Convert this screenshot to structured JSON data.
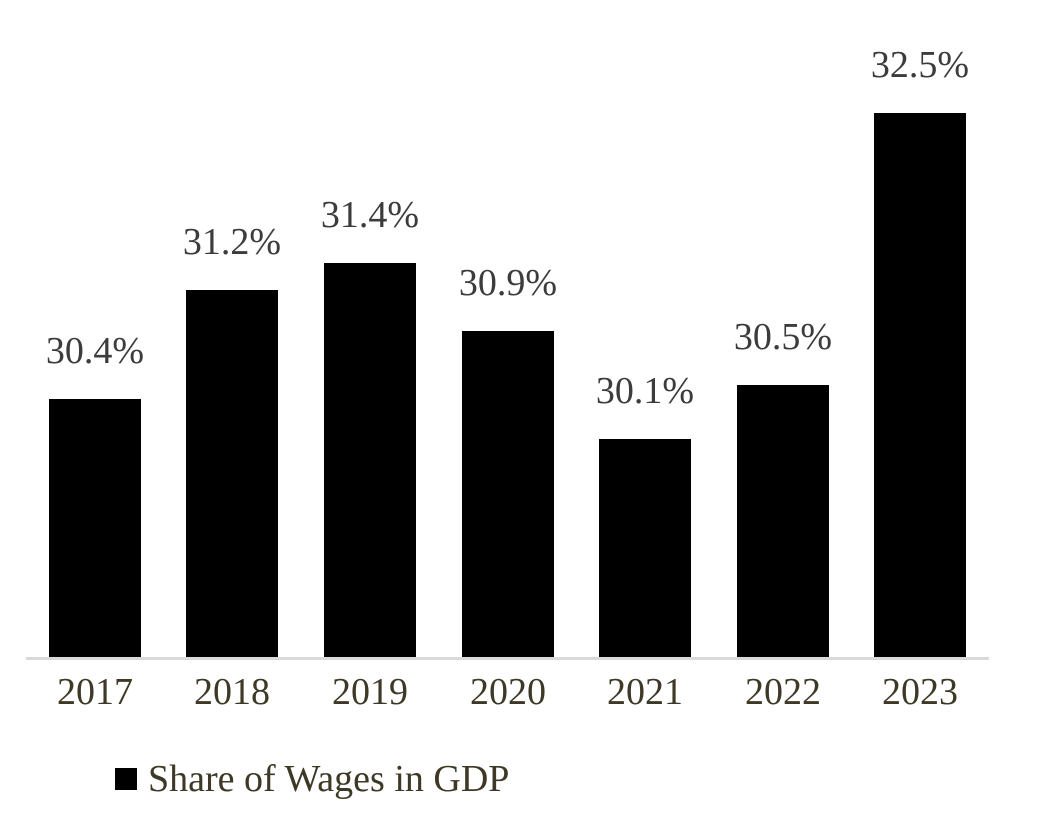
{
  "chart_data": {
    "type": "bar",
    "title": "",
    "categories": [
      "2017",
      "2018",
      "2019",
      "2020",
      "2021",
      "2022",
      "2023"
    ],
    "series": [
      {
        "name": "Share of Wages in GDP",
        "values": [
          30.4,
          31.2,
          31.4,
          30.9,
          30.1,
          30.5,
          32.5
        ]
      }
    ],
    "data_labels": [
      "30.4%",
      "31.2%",
      "31.4%",
      "30.9%",
      "30.1%",
      "30.5%",
      "32.5%"
    ],
    "legend": {
      "label": "Share of Wages in GDP",
      "position": "bottom-left",
      "marker": "square"
    },
    "ylim": [
      28.5,
      33
    ],
    "grid": false,
    "y_axis_visible": false,
    "data_labels_position": "outside-end",
    "colors": {
      "bar": "#000000",
      "axis_line": "#D9D9D9",
      "data_label_text": "#3C3C3C",
      "axis_text": "#3E3927",
      "background": "#FFFFFF"
    }
  }
}
